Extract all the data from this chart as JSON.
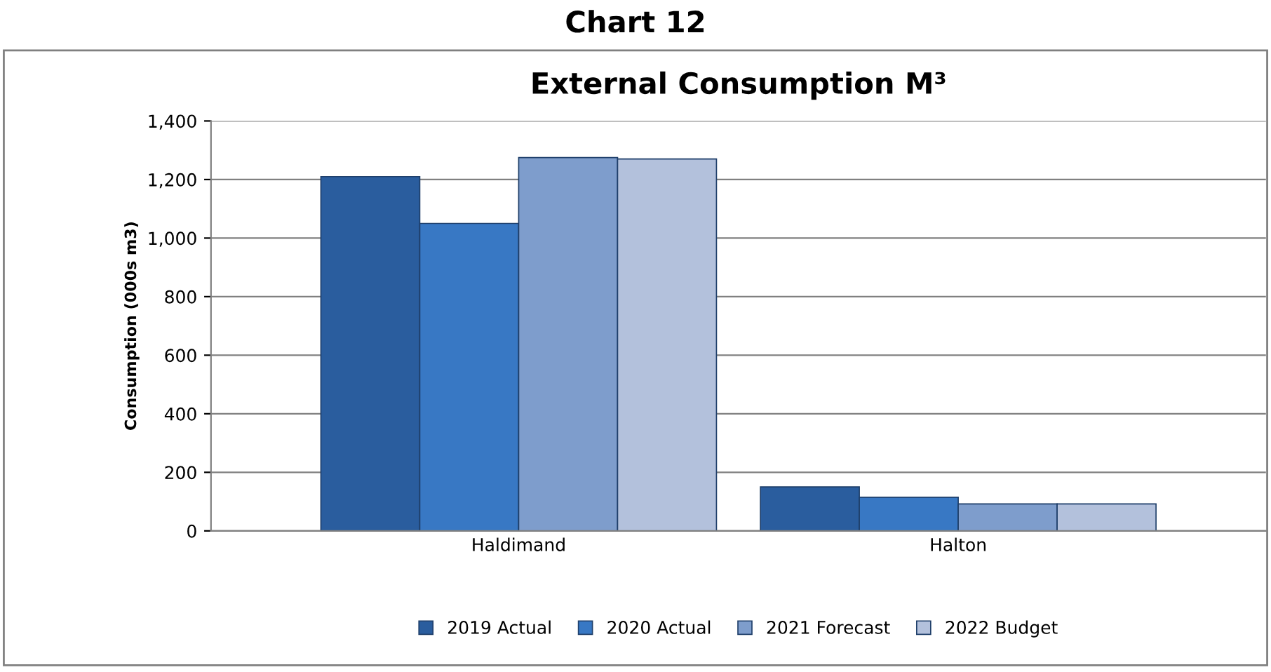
{
  "chart_data": {
    "type": "bar",
    "title": "External Consumption M³",
    "ylabel": "Consumption (000s m3)",
    "annotations": [
      "Chart 12"
    ],
    "categories": [
      "Haldimand",
      "Halton"
    ],
    "series": [
      {
        "name": "2019 Actual",
        "color": "#2a5d9e",
        "values": [
          1210,
          150
        ]
      },
      {
        "name": "2020 Actual",
        "color": "#3878c4",
        "values": [
          1050,
          115
        ]
      },
      {
        "name": "2021 Forecast",
        "color": "#7e9dcc",
        "values": [
          1275,
          92
        ]
      },
      {
        "name": "2022 Budget",
        "color": "#b3c1dc",
        "values": [
          1270,
          92
        ]
      }
    ],
    "ylim": [
      0,
      1400
    ],
    "yticks": [
      {
        "value": 0,
        "label": "0"
      },
      {
        "value": 200,
        "label": "200"
      },
      {
        "value": 400,
        "label": "400"
      },
      {
        "value": 600,
        "label": "600"
      },
      {
        "value": 800,
        "label": "800"
      },
      {
        "value": 1000,
        "label": "1,000"
      },
      {
        "value": 1200,
        "label": "1,200"
      },
      {
        "value": 1400,
        "label": "1,400"
      }
    ],
    "grid": "y",
    "legend": "bottom"
  }
}
